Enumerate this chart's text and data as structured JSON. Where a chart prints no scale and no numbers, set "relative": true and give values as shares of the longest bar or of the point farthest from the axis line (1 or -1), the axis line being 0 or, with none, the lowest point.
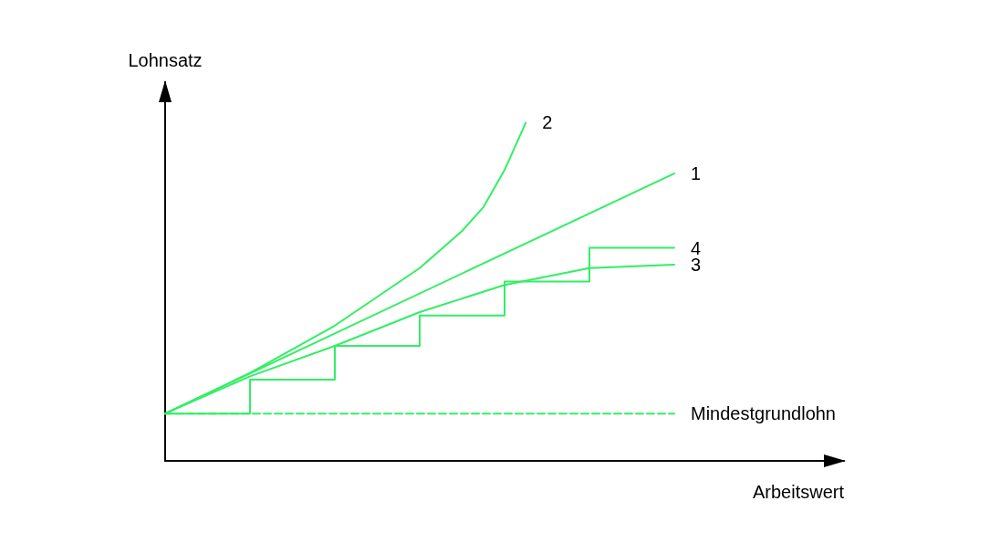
{
  "chart_data": {
    "type": "line",
    "relative": true,
    "xlabel": "Arbeitswert",
    "ylabel": "Lohnsatz",
    "marker": "none",
    "grid": false,
    "legend": false,
    "categories": [
      null,
      null,
      null,
      null,
      null,
      null,
      null,
      null,
      null,
      null,
      null,
      null,
      null,
      null,
      null,
      null,
      null,
      null,
      null,
      null,
      null,
      null,
      null,
      null,
      null,
      null,
      null,
      null,
      null,
      null,
      null,
      null,
      null
    ],
    "series": [
      {
        "name": "2",
        "color": "#33ee66",
        "values": [
          0.14,
          null,
          null,
          null,
          0.26,
          null,
          null,
          null,
          0.4,
          null,
          null,
          null,
          0.57,
          null,
          0.68,
          0.75,
          0.86,
          1,
          null,
          null,
          null,
          null,
          null,
          null,
          null,
          null,
          null,
          null,
          null,
          null,
          null,
          null,
          null
        ]
      },
      {
        "name": "1",
        "color": "#33ee66",
        "values": [
          0.14,
          null,
          null,
          null,
          null,
          null,
          null,
          null,
          null,
          null,
          null,
          null,
          null,
          null,
          null,
          null,
          null,
          null,
          null,
          null,
          null,
          null,
          null,
          null,
          0.85,
          null,
          null,
          null,
          null,
          null,
          null,
          null,
          null
        ]
      },
      {
        "name": "4",
        "type": "step",
        "color": "#33ee66",
        "values": [
          0.14,
          null,
          null,
          null,
          0.24,
          null,
          null,
          null,
          0.34,
          null,
          null,
          null,
          0.43,
          null,
          null,
          null,
          0.53,
          null,
          null,
          null,
          0.63,
          null,
          null,
          null,
          0.63,
          null,
          null,
          null,
          null,
          null,
          null,
          null,
          null
        ]
      },
      {
        "name": "3",
        "color": "#33ee66",
        "values": [
          0.14,
          null,
          null,
          null,
          0.25,
          null,
          null,
          null,
          0.34,
          null,
          null,
          null,
          0.44,
          null,
          null,
          null,
          0.52,
          null,
          null,
          null,
          0.57,
          null,
          null,
          null,
          0.58,
          null,
          null,
          null,
          null,
          null,
          null,
          null,
          null
        ]
      },
      {
        "name": "Mindestgrundlohn",
        "color": "#33ee66",
        "line_style": "dashed",
        "values": [
          0.14,
          null,
          null,
          null,
          null,
          null,
          null,
          null,
          null,
          null,
          null,
          null,
          null,
          null,
          null,
          null,
          null,
          null,
          null,
          null,
          null,
          null,
          null,
          null,
          0.14,
          null,
          null,
          null,
          null,
          null,
          null,
          null,
          null
        ]
      }
    ]
  }
}
